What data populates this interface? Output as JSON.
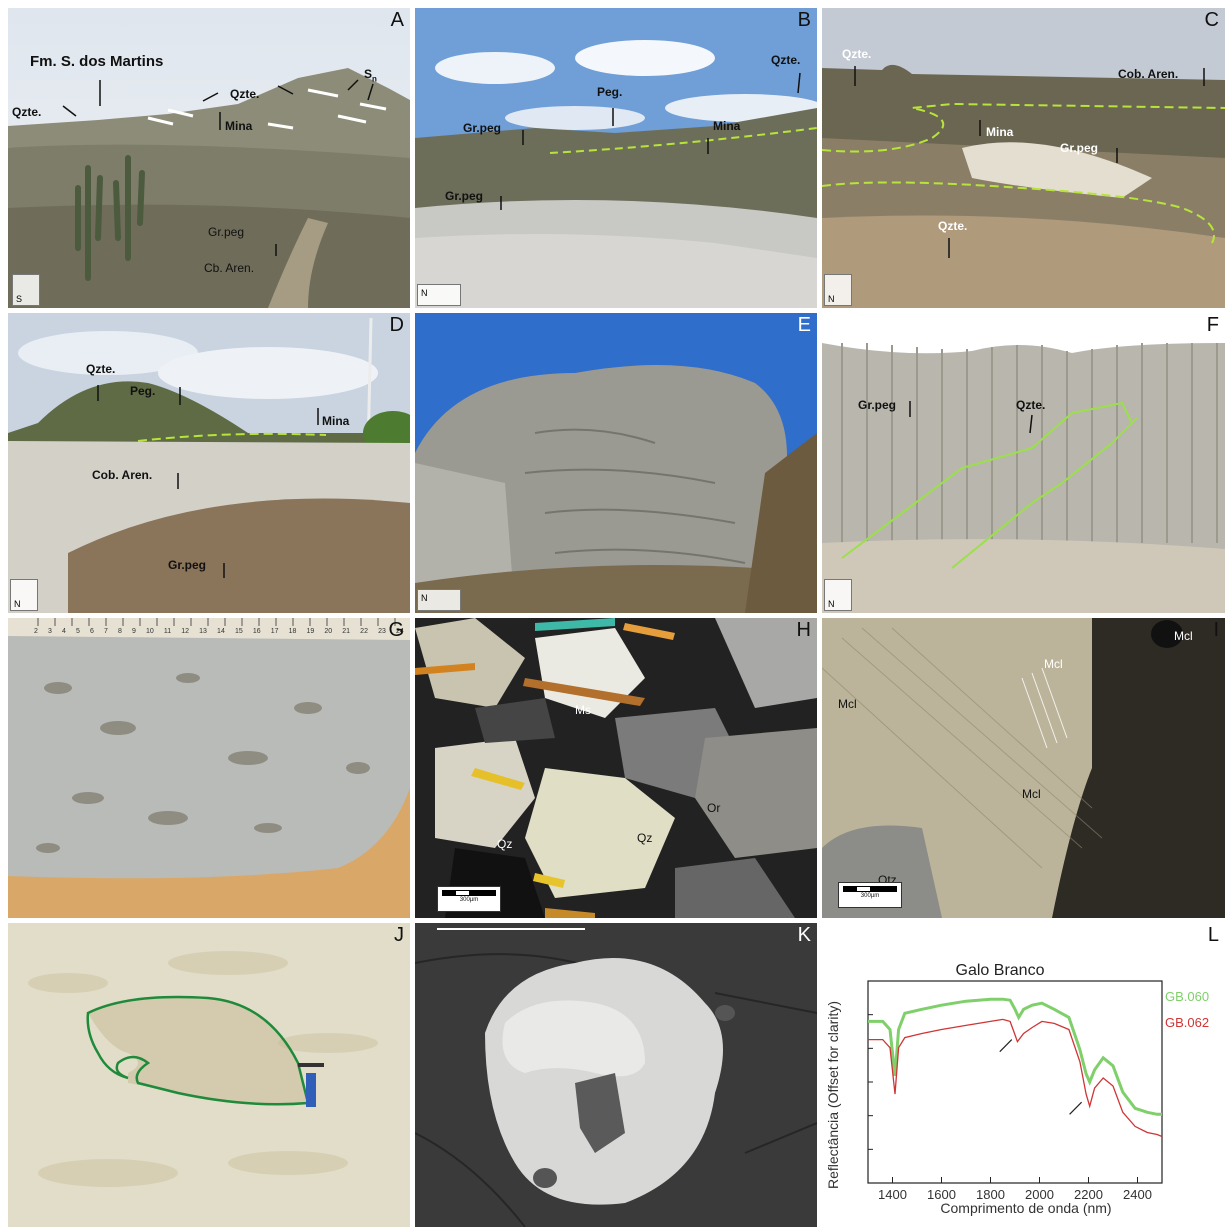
{
  "panels": {
    "a": {
      "letter": "A",
      "formation": "Fm. S. dos Martins",
      "qzte_left": "Qzte.",
      "qzte_mid": "Qzte.",
      "sn": "S",
      "sn_sub": "n",
      "mina": "Mina",
      "grpeg": "Gr.peg",
      "cbaren": "Cb. Aren.",
      "north": "S"
    },
    "b": {
      "letter": "B",
      "peg": "Peg.",
      "qzte": "Qzte.",
      "grpeg_upper": "Gr.peg",
      "mina": "Mina",
      "grpeg_lower": "Gr.peg",
      "north": "N"
    },
    "c": {
      "letter": "C",
      "qzte_top": "Qzte.",
      "cobaren": "Cob. Aren.",
      "mina": "Mina",
      "grpeg": "Gr.peg",
      "qzte_bottom": "Qzte.",
      "north": "N"
    },
    "d": {
      "letter": "D",
      "qzte": "Qzte.",
      "peg": "Peg.",
      "mina": "Mina",
      "cobaren": "Cob. Aren.",
      "grpeg": "Gr.peg",
      "north": "N"
    },
    "e": {
      "letter": "E",
      "north": "N"
    },
    "f": {
      "letter": "F",
      "grpeg": "Gr.peg",
      "qzte": "Qzte.",
      "north": "N"
    },
    "g": {
      "letter": "G",
      "ruler": [
        "2",
        "3",
        "4",
        "5",
        "6",
        "7",
        "8",
        "9",
        "10",
        "11",
        "12",
        "13",
        "14",
        "15",
        "16",
        "17",
        "18",
        "19",
        "20",
        "21",
        "22",
        "23",
        "24"
      ]
    },
    "h": {
      "letter": "H",
      "ms": "Ms",
      "qz_left": "Qz",
      "qz_right": "Qz",
      "or": "Or",
      "scale": "300µm"
    },
    "i": {
      "letter": "I",
      "mcl_top": "Mcl",
      "mcl_mid": "Mcl",
      "mcl_left": "Mcl",
      "mcl_low": "Mcl",
      "qtz": "Qtz",
      "scale": "300µm"
    },
    "j": {
      "letter": "J"
    },
    "k": {
      "letter": "K"
    },
    "l": {
      "letter": "L"
    }
  },
  "chart_data": {
    "type": "line",
    "title": "Galo Branco",
    "xlabel": "Comprimento de onda (nm)",
    "ylabel": "Reflectância (Offset for clarity)",
    "xlim": [
      1300,
      2500
    ],
    "xticks": [
      1400,
      1600,
      1800,
      2000,
      2200,
      2400
    ],
    "ylim": [
      0,
      1
    ],
    "series": [
      {
        "name": "GB.060",
        "color": "#7fcf6a",
        "x": [
          1300,
          1360,
          1390,
          1410,
          1425,
          1450,
          1520,
          1600,
          1700,
          1800,
          1850,
          1880,
          1900,
          1915,
          1935,
          1970,
          2010,
          2060,
          2120,
          2165,
          2190,
          2205,
          2225,
          2260,
          2300,
          2340,
          2390,
          2440,
          2480,
          2500
        ],
        "y": [
          0.8,
          0.8,
          0.76,
          0.53,
          0.76,
          0.84,
          0.86,
          0.88,
          0.9,
          0.91,
          0.91,
          0.905,
          0.86,
          0.82,
          0.86,
          0.88,
          0.89,
          0.86,
          0.82,
          0.66,
          0.54,
          0.5,
          0.56,
          0.62,
          0.58,
          0.45,
          0.37,
          0.35,
          0.34,
          0.34
        ]
      },
      {
        "name": "GB.062",
        "color": "#cf3535",
        "x": [
          1300,
          1360,
          1390,
          1410,
          1425,
          1450,
          1520,
          1600,
          1700,
          1800,
          1850,
          1880,
          1895,
          1910,
          1935,
          1970,
          2010,
          2060,
          2120,
          2165,
          2190,
          2205,
          2225,
          2260,
          2300,
          2340,
          2390,
          2440,
          2480,
          2500
        ],
        "y": [
          0.71,
          0.71,
          0.67,
          0.44,
          0.67,
          0.72,
          0.74,
          0.76,
          0.78,
          0.8,
          0.81,
          0.8,
          0.75,
          0.7,
          0.74,
          0.77,
          0.8,
          0.79,
          0.76,
          0.6,
          0.44,
          0.38,
          0.47,
          0.52,
          0.48,
          0.35,
          0.28,
          0.25,
          0.24,
          0.23
        ]
      }
    ]
  }
}
